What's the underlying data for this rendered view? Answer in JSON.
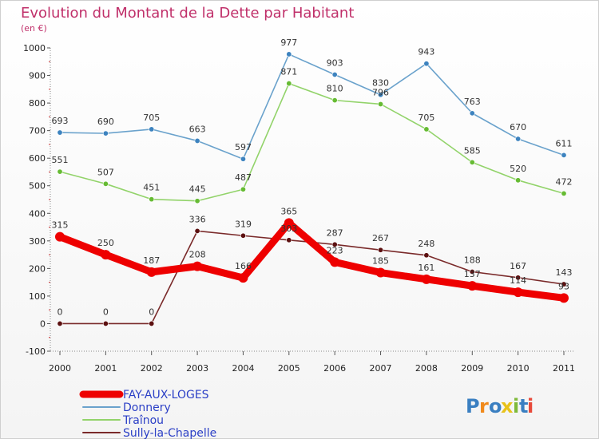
{
  "chart_data": {
    "type": "line",
    "title": "Evolution du Montant de la Dette par Habitant",
    "subtitle": "(en €)",
    "x": [
      "2000",
      "2001",
      "2002",
      "2003",
      "2004",
      "2005",
      "2006",
      "2007",
      "2008",
      "2009",
      "2010",
      "2011"
    ],
    "ylim": [
      -100,
      1000
    ],
    "yticks": [
      -100,
      0,
      100,
      200,
      300,
      400,
      500,
      600,
      700,
      800,
      900,
      1000
    ],
    "grid": false,
    "legend_position": "bottom-left",
    "series": [
      {
        "name": "FAY-AUX-LOGES",
        "color": "#ee0000",
        "marker_color": "#ee0000",
        "values": [
          315,
          250,
          187,
          208,
          166,
          365,
          223,
          185,
          161,
          137,
          114,
          93
        ]
      },
      {
        "name": "Donnery",
        "color": "#6aa2cc",
        "marker_color": "#3d83bf",
        "values": [
          693,
          690,
          705,
          663,
          597,
          977,
          903,
          830,
          943,
          763,
          670,
          611
        ]
      },
      {
        "name": "Traînou",
        "color": "#92d36a",
        "marker_color": "#66bb33",
        "values": [
          551,
          507,
          451,
          445,
          487,
          871,
          810,
          796,
          705,
          585,
          520,
          472
        ]
      },
      {
        "name": "Sully-la-Chapelle",
        "color": "#7a2a2a",
        "marker_color": "#5c1010",
        "values": [
          0,
          0,
          0,
          336,
          319,
          303,
          287,
          267,
          248,
          188,
          167,
          143
        ]
      }
    ]
  },
  "branding": {
    "logo_letters": [
      "P",
      "r",
      "o",
      "x",
      "i",
      "t",
      "i"
    ],
    "logo_colors": [
      "#3a7fc1",
      "#f08a1c",
      "#3a7fc1",
      "#e8c21a",
      "#7fba3a",
      "#3a7fc1",
      "#e84a3a"
    ]
  }
}
